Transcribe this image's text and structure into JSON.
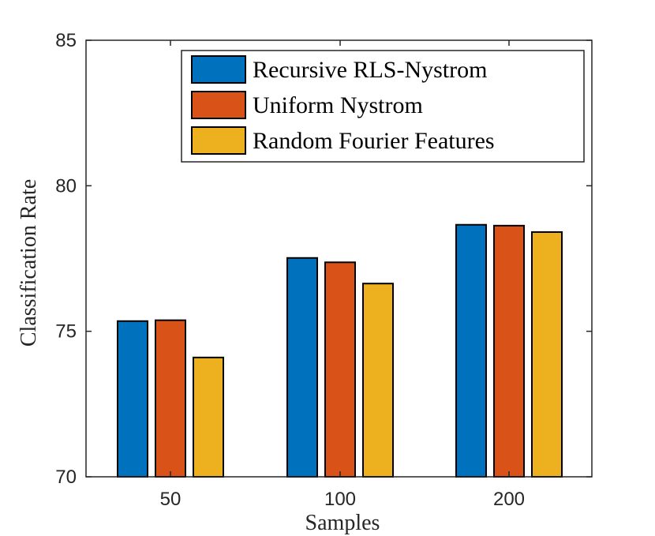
{
  "chart_data": {
    "type": "bar",
    "title": "",
    "xlabel": "Samples",
    "ylabel": "Classification Rate",
    "categories": [
      "50",
      "100",
      "200"
    ],
    "ylim": [
      70,
      85
    ],
    "yticks": [
      70,
      75,
      80,
      85
    ],
    "grid": false,
    "legend_position": "top-right",
    "series": [
      {
        "name": "Recursive RLS-Nystrom",
        "color": "#0072BD",
        "values": [
          75.35,
          77.52,
          78.66
        ]
      },
      {
        "name": "Uniform Nystrom",
        "color": "#D95319",
        "values": [
          75.38,
          77.37,
          78.63
        ]
      },
      {
        "name": "Random Fourier Features",
        "color": "#EDB120",
        "values": [
          74.1,
          76.64,
          78.41
        ]
      }
    ]
  }
}
